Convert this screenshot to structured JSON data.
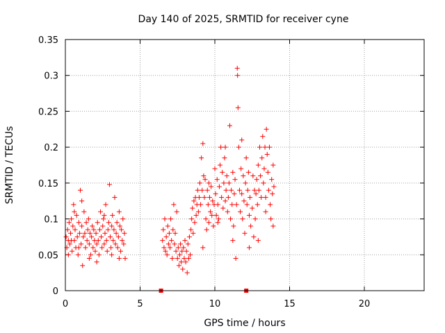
{
  "chart_data": {
    "type": "scatter",
    "title": "Day 140 of 2025, SRMTID for receiver cyne",
    "xlabel": "GPS time / hours",
    "ylabel": "SRMTID / TECUs",
    "xlim": [
      0,
      24
    ],
    "ylim": [
      0,
      0.35
    ],
    "grid": true,
    "marker": "+",
    "color": "#ff0000",
    "x_ticks": [
      0,
      5,
      10,
      15,
      20
    ],
    "x_tick_labels": [
      "0",
      "5",
      "10",
      "15",
      "20"
    ],
    "y_ticks": [
      0,
      0.05,
      0.1,
      0.15,
      0.2,
      0.25,
      0.3,
      0.35
    ],
    "y_tick_labels": [
      "0",
      "0.05",
      "0.1",
      "0.15",
      "0.2",
      "0.25",
      "0.3",
      "0.35"
    ],
    "zero_markers": [
      {
        "x": 6.4,
        "y": 0
      },
      {
        "x": 12.1,
        "y": 0
      }
    ],
    "series": [
      {
        "name": "SRMTID",
        "points": [
          [
            0.05,
            0.075
          ],
          [
            0.1,
            0.06
          ],
          [
            0.15,
            0.085
          ],
          [
            0.2,
            0.07
          ],
          [
            0.25,
            0.095
          ],
          [
            0.3,
            0.065
          ],
          [
            0.35,
            0.08
          ],
          [
            0.4,
            0.1
          ],
          [
            0.45,
            0.055
          ],
          [
            0.5,
            0.09
          ],
          [
            0.55,
            0.12
          ],
          [
            0.6,
            0.07
          ],
          [
            0.65,
            0.085
          ],
          [
            0.7,
            0.06
          ],
          [
            0.75,
            0.105
          ],
          [
            0.8,
            0.075
          ],
          [
            0.85,
            0.05
          ],
          [
            0.9,
            0.095
          ],
          [
            0.95,
            0.08
          ],
          [
            1.0,
            0.14
          ],
          [
            1.05,
            0.065
          ],
          [
            1.1,
            0.09
          ],
          [
            1.15,
            0.035
          ],
          [
            1.2,
            0.075
          ],
          [
            1.25,
            0.11
          ],
          [
            1.3,
            0.08
          ],
          [
            1.35,
            0.06
          ],
          [
            1.4,
            0.095
          ],
          [
            1.45,
            0.07
          ],
          [
            1.5,
            0.085
          ],
          [
            1.55,
            0.1
          ],
          [
            1.6,
            0.065
          ],
          [
            1.65,
            0.08
          ],
          [
            1.7,
            0.05
          ],
          [
            1.75,
            0.075
          ],
          [
            1.8,
            0.09
          ],
          [
            1.85,
            0.06
          ],
          [
            1.9,
            0.085
          ],
          [
            1.95,
            0.07
          ],
          [
            2.0,
            0.055
          ],
          [
            2.05,
            0.08
          ],
          [
            2.1,
            0.065
          ],
          [
            2.15,
            0.095
          ],
          [
            2.2,
            0.07
          ],
          [
            2.25,
            0.05
          ],
          [
            2.3,
            0.085
          ],
          [
            2.35,
            0.11
          ],
          [
            2.4,
            0.075
          ],
          [
            2.45,
            0.06
          ],
          [
            2.5,
            0.09
          ],
          [
            2.55,
            0.1
          ],
          [
            2.6,
            0.065
          ],
          [
            2.65,
            0.08
          ],
          [
            2.7,
            0.12
          ],
          [
            2.75,
            0.07
          ],
          [
            2.8,
            0.055
          ],
          [
            2.85,
            0.085
          ],
          [
            2.9,
            0.095
          ],
          [
            2.95,
            0.148
          ],
          [
            3.0,
            0.075
          ],
          [
            3.05,
            0.06
          ],
          [
            3.1,
            0.09
          ],
          [
            3.15,
            0.105
          ],
          [
            3.2,
            0.07
          ],
          [
            3.25,
            0.085
          ],
          [
            3.3,
            0.13
          ],
          [
            3.35,
            0.065
          ],
          [
            3.4,
            0.08
          ],
          [
            3.45,
            0.095
          ],
          [
            3.5,
            0.06
          ],
          [
            3.55,
            0.075
          ],
          [
            3.6,
            0.11
          ],
          [
            3.65,
            0.09
          ],
          [
            3.7,
            0.055
          ],
          [
            3.75,
            0.085
          ],
          [
            3.8,
            0.07
          ],
          [
            3.85,
            0.1
          ],
          [
            3.9,
            0.065
          ],
          [
            3.95,
            0.08
          ],
          [
            4.0,
            0.045
          ],
          [
            0.2,
            0.05
          ],
          [
            0.6,
            0.11
          ],
          [
            1.1,
            0.125
          ],
          [
            1.6,
            0.045
          ],
          [
            2.1,
            0.04
          ],
          [
            2.6,
            0.105
          ],
          [
            3.1,
            0.05
          ],
          [
            3.6,
            0.045
          ],
          [
            0.4,
            0.07
          ],
          [
            0.9,
            0.06
          ],
          [
            6.5,
            0.07
          ],
          [
            6.55,
            0.085
          ],
          [
            6.6,
            0.06
          ],
          [
            6.65,
            0.1
          ],
          [
            6.7,
            0.055
          ],
          [
            6.75,
            0.075
          ],
          [
            6.8,
            0.05
          ],
          [
            6.85,
            0.09
          ],
          [
            6.9,
            0.065
          ],
          [
            6.95,
            0.08
          ],
          [
            7.0,
            0.06
          ],
          [
            7.05,
            0.1
          ],
          [
            7.1,
            0.07
          ],
          [
            7.15,
            0.045
          ],
          [
            7.2,
            0.085
          ],
          [
            7.25,
            0.12
          ],
          [
            7.3,
            0.065
          ],
          [
            7.35,
            0.08
          ],
          [
            7.4,
            0.055
          ],
          [
            7.45,
            0.11
          ],
          [
            7.5,
            0.045
          ],
          [
            7.55,
            0.06
          ],
          [
            7.6,
            0.035
          ],
          [
            7.65,
            0.05
          ],
          [
            7.7,
            0.065
          ],
          [
            7.75,
            0.04
          ],
          [
            7.8,
            0.055
          ],
          [
            7.85,
            0.03
          ],
          [
            7.9,
            0.06
          ],
          [
            7.95,
            0.045
          ],
          [
            8.0,
            0.07
          ],
          [
            8.05,
            0.04
          ],
          [
            8.1,
            0.055
          ],
          [
            8.15,
            0.025
          ],
          [
            8.2,
            0.065
          ],
          [
            8.25,
            0.045
          ],
          [
            8.3,
            0.075
          ],
          [
            8.35,
            0.05
          ],
          [
            8.4,
            0.085
          ],
          [
            8.45,
            0.1
          ],
          [
            8.5,
            0.115
          ],
          [
            8.55,
            0.08
          ],
          [
            8.6,
            0.125
          ],
          [
            8.65,
            0.095
          ],
          [
            8.7,
            0.13
          ],
          [
            8.75,
            0.105
          ],
          [
            8.8,
            0.12
          ],
          [
            8.85,
            0.14
          ],
          [
            8.9,
            0.11
          ],
          [
            8.95,
            0.13
          ],
          [
            9.0,
            0.15
          ],
          [
            9.05,
            0.12
          ],
          [
            9.1,
            0.185
          ],
          [
            9.15,
            0.14
          ],
          [
            9.2,
            0.205
          ],
          [
            9.25,
            0.16
          ],
          [
            9.3,
            0.13
          ],
          [
            9.35,
            0.155
          ],
          [
            9.4,
            0.1
          ],
          [
            9.45,
            0.085
          ],
          [
            9.5,
            0.14
          ],
          [
            9.55,
            0.12
          ],
          [
            9.6,
            0.095
          ],
          [
            9.65,
            0.13
          ],
          [
            9.7,
            0.11
          ],
          [
            9.75,
            0.145
          ],
          [
            9.8,
            0.105
          ],
          [
            9.85,
            0.125
          ],
          [
            9.9,
            0.09
          ],
          [
            9.95,
            0.12
          ],
          [
            10.0,
            0.17
          ],
          [
            10.05,
            0.135
          ],
          [
            10.1,
            0.105
          ],
          [
            10.15,
            0.155
          ],
          [
            10.2,
            0.12
          ],
          [
            10.25,
            0.1
          ],
          [
            10.3,
            0.145
          ],
          [
            10.35,
            0.175
          ],
          [
            10.4,
            0.2
          ],
          [
            10.45,
            0.13
          ],
          [
            10.5,
            0.165
          ],
          [
            10.55,
            0.115
          ],
          [
            10.6,
            0.15
          ],
          [
            10.65,
            0.185
          ],
          [
            10.7,
            0.125
          ],
          [
            10.75,
            0.14
          ],
          [
            10.8,
            0.16
          ],
          [
            10.85,
            0.11
          ],
          [
            10.9,
            0.13
          ],
          [
            10.95,
            0.15
          ],
          [
            11.0,
            0.23
          ],
          [
            11.05,
            0.1
          ],
          [
            11.1,
            0.14
          ],
          [
            11.15,
            0.12
          ],
          [
            11.2,
            0.165
          ],
          [
            11.25,
            0.09
          ],
          [
            11.3,
            0.135
          ],
          [
            11.35,
            0.155
          ],
          [
            11.4,
            0.045
          ],
          [
            11.45,
            0.12
          ],
          [
            11.5,
            0.31
          ],
          [
            11.52,
            0.3
          ],
          [
            11.55,
            0.255
          ],
          [
            11.6,
            0.2
          ],
          [
            11.65,
            0.14
          ],
          [
            11.7,
            0.11
          ],
          [
            11.75,
            0.17
          ],
          [
            11.8,
            0.135
          ],
          [
            11.85,
            0.1
          ],
          [
            11.9,
            0.16
          ],
          [
            11.95,
            0.125
          ],
          [
            12.0,
            0.08
          ],
          [
            12.05,
            0.15
          ],
          [
            12.1,
            0.185
          ],
          [
            12.15,
            0.12
          ],
          [
            12.2,
            0.14
          ],
          [
            12.25,
            0.165
          ],
          [
            12.3,
            0.105
          ],
          [
            12.35,
            0.13
          ],
          [
            12.4,
            0.09
          ],
          [
            12.5,
            0.115
          ],
          [
            12.55,
            0.16
          ],
          [
            12.6,
            0.075
          ],
          [
            12.65,
            0.14
          ],
          [
            12.7,
            0.1
          ],
          [
            12.75,
            0.135
          ],
          [
            12.8,
            0.155
          ],
          [
            12.85,
            0.12
          ],
          [
            12.9,
            0.175
          ],
          [
            12.95,
            0.14
          ],
          [
            13.0,
            0.2
          ],
          [
            13.05,
            0.16
          ],
          [
            13.1,
            0.13
          ],
          [
            13.15,
            0.185
          ],
          [
            13.2,
            0.215
          ],
          [
            13.25,
            0.15
          ],
          [
            13.3,
            0.17
          ],
          [
            13.35,
            0.2
          ],
          [
            13.4,
            0.13
          ],
          [
            13.45,
            0.225
          ],
          [
            13.5,
            0.19
          ],
          [
            13.55,
            0.165
          ],
          [
            13.6,
            0.14
          ],
          [
            13.65,
            0.2
          ],
          [
            13.7,
            0.12
          ],
          [
            13.75,
            0.1
          ],
          [
            13.8,
            0.155
          ],
          [
            13.85,
            0.135
          ],
          [
            13.9,
            0.175
          ],
          [
            13.95,
            0.145
          ],
          [
            9.2,
            0.06
          ],
          [
            9.6,
            0.15
          ],
          [
            10.2,
            0.095
          ],
          [
            10.7,
            0.2
          ],
          [
            11.2,
            0.07
          ],
          [
            11.8,
            0.21
          ],
          [
            12.3,
            0.06
          ],
          [
            12.9,
            0.07
          ],
          [
            13.4,
            0.11
          ],
          [
            13.9,
            0.09
          ]
        ]
      }
    ]
  }
}
